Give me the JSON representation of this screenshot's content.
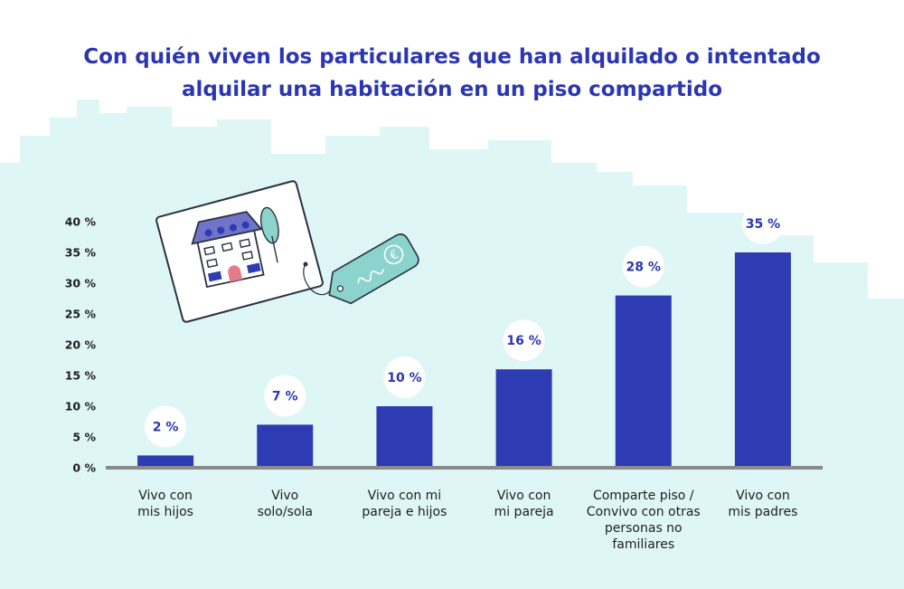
{
  "title_lines": [
    "Con quién viven los particulares que han alquilado o intentado",
    "alquilar una habitación en un piso compartido"
  ],
  "colors": {
    "bar": "#2f3bb3",
    "title": "#2b36b0",
    "value_text": "#2b36b0",
    "baseline": "#8a8a8a",
    "skyline": "#dff6f6",
    "bubble": "#ffffff"
  },
  "illustration": {
    "name": "house-listing-card-with-euro-price-tag-icon"
  },
  "chart_data": {
    "type": "bar",
    "categories": [
      [
        "Vivo con",
        "mis hijos"
      ],
      [
        "Vivo",
        "solo/sola"
      ],
      [
        "Vivo con mi",
        "pareja e hijos"
      ],
      [
        "Vivo con",
        "mi pareja"
      ],
      [
        "Comparte piso /",
        "Convivo con otras",
        "personas no",
        "familiares"
      ],
      [
        "Vivo con",
        "mis padres"
      ]
    ],
    "values": [
      2,
      7,
      10,
      16,
      28,
      35
    ],
    "value_labels": [
      "2 %",
      "7 %",
      "10 %",
      "16 %",
      "28 %",
      "35 %"
    ],
    "yticks": [
      "0 %",
      "5 %",
      "10 %",
      "15 %",
      "20 %",
      "25 %",
      "30 %",
      "35 %",
      "40 %"
    ],
    "ylim": [
      0,
      40
    ],
    "xlabel": "",
    "ylabel": "",
    "grid": false,
    "legend": "none"
  }
}
